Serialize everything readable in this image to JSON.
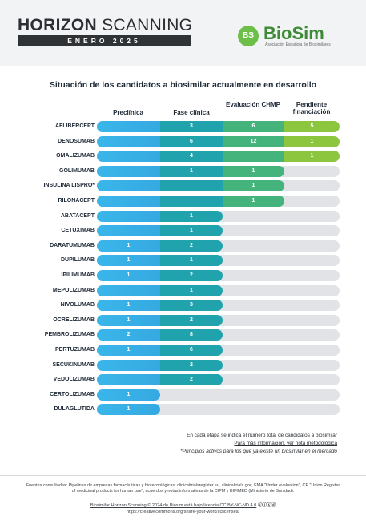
{
  "header": {
    "title_bold": "HORIZON",
    "title_rest": " SCANNING",
    "subtitle": "ENERO 2025",
    "logo_badge": "BS",
    "logo_name": "BioSim",
    "logo_tagline": "Asociación Española de Biosimilares"
  },
  "colors": {
    "preclinica": "#35a9e1",
    "fase_clinica": "#21a3ad",
    "evaluacion_chmp": "#44b47c",
    "pendiente_financiacion": "#8cc63f",
    "track": "#e1e3e6"
  },
  "chart_data": {
    "type": "bar",
    "title": "Situación de los candidatos a biosimilar actualmente en desarrollo",
    "stages": [
      "Preclínica",
      "Fase clínica",
      "Evaluación CHMP",
      "Pendiente financiación"
    ],
    "categories": [
      "AFLIBERCEPT",
      "DENOSUMAB",
      "OMALIZUMAB",
      "GOLIMUMAB",
      "INSULINA LISPRO*",
      "RILONACEPT",
      "ABATACEPT",
      "CETUXIMAB",
      "DARATUMUMAB",
      "DUPILUMAB",
      "IPILIMUMAB",
      "MEPOLIZUMAB",
      "NIVOLUMAB",
      "OCRELIZUMAB",
      "PEMBROLIZUMAB",
      "PERTUZUMAB",
      "SECUKINUMAB",
      "VEDOLIZUMAB",
      "CERTOLIZUMAB",
      "DULAGLUTIDA"
    ],
    "rows": [
      {
        "name": "AFLIBERCEPT",
        "reached": 4,
        "values": [
          null,
          3,
          6,
          5
        ]
      },
      {
        "name": "DENOSUMAB",
        "reached": 4,
        "values": [
          null,
          6,
          12,
          1
        ]
      },
      {
        "name": "OMALIZUMAB",
        "reached": 4,
        "values": [
          null,
          4,
          null,
          1
        ]
      },
      {
        "name": "GOLIMUMAB",
        "reached": 3,
        "values": [
          null,
          1,
          1,
          null
        ]
      },
      {
        "name": "INSULINA LISPRO*",
        "reached": 3,
        "values": [
          null,
          null,
          1,
          null
        ]
      },
      {
        "name": "RILONACEPT",
        "reached": 3,
        "values": [
          null,
          null,
          1,
          null
        ]
      },
      {
        "name": "ABATACEPT",
        "reached": 2,
        "values": [
          null,
          1,
          null,
          null
        ]
      },
      {
        "name": "CETUXIMAB",
        "reached": 2,
        "values": [
          null,
          1,
          null,
          null
        ]
      },
      {
        "name": "DARATUMUMAB",
        "reached": 2,
        "values": [
          1,
          2,
          null,
          null
        ]
      },
      {
        "name": "DUPILUMAB",
        "reached": 2,
        "values": [
          1,
          1,
          null,
          null
        ]
      },
      {
        "name": "IPILIMUMAB",
        "reached": 2,
        "values": [
          1,
          2,
          null,
          null
        ]
      },
      {
        "name": "MEPOLIZUMAB",
        "reached": 2,
        "values": [
          null,
          1,
          null,
          null
        ]
      },
      {
        "name": "NIVOLUMAB",
        "reached": 2,
        "values": [
          1,
          3,
          null,
          null
        ]
      },
      {
        "name": "OCRELIZUMAB",
        "reached": 2,
        "values": [
          1,
          2,
          null,
          null
        ]
      },
      {
        "name": "PEMBROLIZUMAB",
        "reached": 2,
        "values": [
          2,
          8,
          null,
          null
        ]
      },
      {
        "name": "PERTUZUMAB",
        "reached": 2,
        "values": [
          1,
          6,
          null,
          null
        ]
      },
      {
        "name": "SECUKINUMAB",
        "reached": 2,
        "values": [
          null,
          2,
          null,
          null
        ]
      },
      {
        "name": "VEDOLIZUMAB",
        "reached": 2,
        "values": [
          null,
          2,
          null,
          null
        ]
      },
      {
        "name": "CERTOLIZUMAB",
        "reached": 1,
        "values": [
          1,
          null,
          null,
          null
        ]
      },
      {
        "name": "DULAGLUTIDA",
        "reached": 1,
        "values": [
          1,
          null,
          null,
          null
        ]
      }
    ]
  },
  "notes": {
    "line1": "En cada etapa se indica el número total de candidatos a biosimilar",
    "line2": "Para más información, ver nota metodológica",
    "line3": "*Principios activos para los que ya existe un biosimilar en el mercado"
  },
  "footer": {
    "sources": "Fuentes consultadas: Pipelines de empresas farmacéuticas y biotecnológicas, clinicaltrialsregister.eu, clinicaltrials.gov, EMA \"Under evaluation\", CE \"Union Register of medicinal products for human use\", acuerdos y notas informativas de la CIPM y BIFIMED (Ministerio de Sanidad).",
    "license": "Biosimilar Horizon Scanning © 2024 de Biosim está bajo licencia CC BY-NC-ND 4.0",
    "license_icons": "ⓒⓘⓢⓓ",
    "url": "https://creativecommons.org/share-your-work/cclicenses/"
  }
}
